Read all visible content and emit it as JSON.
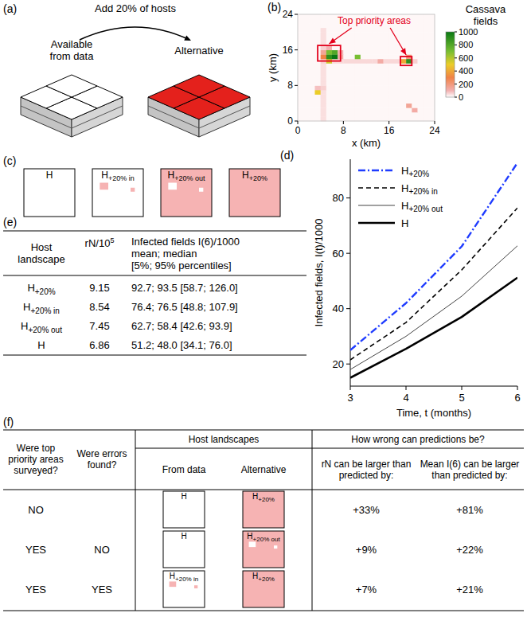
{
  "panel_labels": {
    "a": "(a)",
    "b": "(b)",
    "c": "(c)",
    "d": "(d)",
    "e": "(e)",
    "f": "(f)"
  },
  "panel_a": {
    "arrow_text": "Add 20% of hosts",
    "from_data": "Available from data",
    "alternative": "Alternative",
    "colors": [
      "#ffffff",
      "#e4211c"
    ]
  },
  "chart_data": [
    {
      "type": "heatmap",
      "title": "Cassava fields",
      "x_label": "x (km)",
      "y_label": "y (km)",
      "xlim": [
        0,
        24
      ],
      "ylim": [
        0,
        24
      ],
      "xticks": [
        0,
        8,
        16,
        24
      ],
      "yticks": [
        0,
        8,
        16,
        24
      ],
      "cells": [
        [
          10,
          10,
          10,
          10,
          40,
          10,
          10,
          10,
          10,
          10,
          10,
          10,
          10,
          10,
          10,
          10,
          10,
          10,
          10,
          10,
          10,
          10,
          10,
          10
        ],
        [
          10,
          10,
          10,
          10,
          40,
          10,
          10,
          10,
          10,
          10,
          10,
          10,
          10,
          10,
          10,
          10,
          10,
          10,
          10,
          10,
          10,
          10,
          10,
          10
        ],
        [
          10,
          10,
          10,
          10,
          40,
          10,
          10,
          10,
          10,
          10,
          10,
          10,
          10,
          10,
          10,
          10,
          10,
          10,
          10,
          10,
          120,
          10,
          10,
          10
        ],
        [
          10,
          10,
          10,
          10,
          40,
          10,
          10,
          10,
          10,
          10,
          10,
          10,
          10,
          10,
          10,
          10,
          10,
          10,
          10,
          150,
          10,
          10,
          10,
          10
        ],
        [
          10,
          10,
          10,
          10,
          40,
          10,
          10,
          10,
          10,
          10,
          10,
          10,
          10,
          10,
          10,
          10,
          10,
          10,
          10,
          10,
          10,
          10,
          10,
          10
        ],
        [
          10,
          10,
          10,
          10,
          40,
          10,
          10,
          10,
          10,
          10,
          10,
          10,
          10,
          10,
          10,
          10,
          10,
          10,
          10,
          10,
          10,
          10,
          10,
          10
        ],
        [
          10,
          10,
          10,
          500,
          40,
          10,
          10,
          10,
          10,
          10,
          10,
          10,
          10,
          10,
          10,
          10,
          10,
          10,
          10,
          10,
          10,
          10,
          10,
          10
        ],
        [
          10,
          10,
          10,
          80,
          60,
          10,
          10,
          10,
          10,
          10,
          10,
          10,
          10,
          10,
          10,
          10,
          10,
          10,
          10,
          10,
          10,
          10,
          10,
          10
        ],
        [
          10,
          10,
          10,
          10,
          40,
          10,
          10,
          10,
          10,
          10,
          10,
          10,
          10,
          10,
          10,
          10,
          10,
          10,
          10,
          10,
          10,
          10,
          10,
          10
        ],
        [
          10,
          10,
          10,
          10,
          40,
          10,
          10,
          10,
          10,
          10,
          10,
          10,
          10,
          10,
          10,
          10,
          10,
          10,
          10,
          10,
          10,
          10,
          10,
          10
        ],
        [
          10,
          10,
          10,
          10,
          40,
          10,
          10,
          10,
          10,
          10,
          10,
          10,
          10,
          10,
          10,
          10,
          10,
          10,
          10,
          10,
          10,
          10,
          10,
          10
        ],
        [
          10,
          10,
          10,
          10,
          40,
          10,
          10,
          10,
          10,
          10,
          10,
          10,
          10,
          10,
          10,
          10,
          10,
          10,
          10,
          10,
          10,
          10,
          10,
          10
        ],
        [
          10,
          10,
          10,
          10,
          40,
          10,
          10,
          10,
          10,
          10,
          10,
          10,
          10,
          10,
          10,
          10,
          10,
          10,
          10,
          10,
          10,
          10,
          10,
          10
        ],
        [
          10,
          10,
          10,
          10,
          60,
          550,
          50,
          50,
          50,
          50,
          50,
          50,
          50,
          50,
          120,
          50,
          50,
          50,
          400,
          900,
          60,
          10,
          10,
          10
        ],
        [
          10,
          10,
          10,
          10,
          300,
          900,
          1000,
          120,
          10,
          10,
          700,
          10,
          10,
          10,
          10,
          10,
          10,
          10,
          10,
          200,
          10,
          10,
          10,
          10
        ],
        [
          10,
          10,
          10,
          10,
          150,
          700,
          800,
          100,
          10,
          10,
          10,
          10,
          10,
          10,
          10,
          10,
          10,
          10,
          10,
          10,
          10,
          10,
          10,
          10
        ],
        [
          10,
          10,
          10,
          10,
          60,
          100,
          10,
          10,
          10,
          10,
          10,
          10,
          10,
          10,
          10,
          10,
          10,
          10,
          10,
          10,
          10,
          10,
          10,
          10
        ],
        [
          10,
          10,
          10,
          10,
          40,
          10,
          10,
          10,
          10,
          10,
          10,
          10,
          10,
          10,
          10,
          10,
          10,
          10,
          10,
          10,
          10,
          10,
          10,
          10
        ],
        [
          10,
          10,
          10,
          10,
          40,
          10,
          10,
          10,
          10,
          10,
          10,
          10,
          10,
          10,
          10,
          10,
          10,
          10,
          10,
          10,
          10,
          10,
          10,
          10
        ],
        [
          10,
          10,
          10,
          10,
          40,
          10,
          10,
          10,
          10,
          10,
          10,
          10,
          10,
          10,
          10,
          10,
          10,
          10,
          10,
          10,
          10,
          10,
          10,
          10
        ],
        [
          10,
          10,
          10,
          10,
          40,
          10,
          10,
          10,
          10,
          10,
          10,
          10,
          10,
          10,
          10,
          10,
          10,
          10,
          10,
          10,
          10,
          10,
          10,
          10
        ],
        [
          10,
          10,
          10,
          10,
          10,
          10,
          10,
          10,
          10,
          10,
          10,
          10,
          10,
          10,
          10,
          10,
          10,
          10,
          10,
          10,
          10,
          10,
          10,
          10
        ],
        [
          10,
          10,
          10,
          10,
          10,
          10,
          10,
          10,
          10,
          10,
          10,
          10,
          10,
          10,
          10,
          10,
          10,
          10,
          10,
          10,
          10,
          10,
          10,
          10
        ],
        [
          10,
          10,
          10,
          10,
          10,
          10,
          10,
          10,
          10,
          10,
          10,
          10,
          10,
          10,
          10,
          10,
          10,
          10,
          10,
          10,
          10,
          10,
          10,
          10
        ]
      ],
      "color_range": [
        0,
        1000
      ],
      "color_ticks": [
        0,
        200,
        400,
        600,
        800,
        1000
      ],
      "annotations": [
        {
          "text": "Top priority areas",
          "color": "#e3001b",
          "boxes": [
            [
              3.5,
              13.5,
              7.5,
              17
            ],
            [
              18,
              12.5,
              20,
              14.5
            ]
          ]
        }
      ]
    },
    {
      "type": "line",
      "x_label": "Time, t (months)",
      "y_label": "Infected fields, I(t)/1000",
      "x": [
        3,
        4,
        5,
        6
      ],
      "xlim": [
        3,
        6
      ],
      "xticks": [
        3,
        4,
        5,
        6
      ],
      "ylim": [
        12,
        94
      ],
      "yticks": [
        20,
        40,
        60,
        80
      ],
      "legend": "upper left",
      "series": [
        {
          "name": "H+20%",
          "color": "#1f3cff",
          "line_style": "dashdot",
          "values": [
            25,
            42,
            62.5,
            92.7
          ]
        },
        {
          "name": "H+20% in",
          "color": "#000000",
          "line_style": "dashed",
          "values": [
            21.5,
            35,
            54,
            76.4
          ]
        },
        {
          "name": "H+20% out",
          "color": "#444444",
          "line_style": "solid",
          "values": [
            18,
            30,
            44.5,
            62.7
          ]
        },
        {
          "name": "H",
          "color": "#000000",
          "line_style": "solid",
          "values": [
            15,
            25.5,
            37,
            51.2
          ]
        }
      ]
    }
  ],
  "panel_c": {
    "landscapes": [
      {
        "name": "H",
        "colors": [
          "#ffffff",
          "#ffffff"
        ]
      },
      {
        "name": "H+20% in",
        "colors": [
          "#ffffff",
          "#f6b3b3"
        ]
      },
      {
        "name": "H+20% out",
        "colors": [
          "#f6b3b3",
          "#ffffff"
        ]
      },
      {
        "name": "H+20%",
        "colors": [
          "#f6b3b3",
          "#f6b3b3"
        ]
      }
    ]
  },
  "table_e": {
    "header": {
      "landscape": "Host landscape",
      "rn": "rN/10",
      "rn_exp": "5",
      "infected": [
        "Infected fields I(6)/1000",
        "mean; median",
        "[5%; 95% percentiles]"
      ]
    },
    "rows": [
      {
        "landscape": "H+20%",
        "rn": "9.15",
        "infected": "92.7; 93.5 [58.7; 126.0]"
      },
      {
        "landscape": "H+20% in",
        "rn": "8.54",
        "infected": "76.4; 76.5 [48.8; 107.9]"
      },
      {
        "landscape": "H+20% out",
        "rn": "7.45",
        "infected": "62.7; 58.4 [42.6; 93.9]"
      },
      {
        "landscape": "H",
        "rn": "6.86",
        "infected": "51.2; 48.0 [34.1; 76.0]"
      }
    ]
  },
  "table_f": {
    "headers": {
      "surveyed": "Were top priority areas surveyed?",
      "errors": "Were errors found?",
      "landscapes": "Host landscapes",
      "from_data": "From data",
      "alternative": "Alternative",
      "wrong": "How wrong can predictions be?",
      "rn": "rN can be larger than predicted by:",
      "mean": "Mean I(6) can be larger than predicted by:"
    },
    "rows": [
      {
        "surveyed": "NO",
        "from_data": {
          "name": "H",
          "colors": [
            "#ffffff",
            "#ffffff"
          ]
        },
        "alternative": {
          "name": "H+20%",
          "colors": [
            "#f6b3b3",
            "#f6b3b3"
          ]
        },
        "rn": "+33%",
        "mean": "+81%"
      },
      {
        "surveyed": "YES",
        "errors": "NO",
        "from_data": {
          "name": "H",
          "colors": [
            "#ffffff",
            "#ffffff"
          ]
        },
        "alternative": {
          "name": "H+20% out",
          "colors": [
            "#f6b3b3",
            "#ffffff"
          ]
        },
        "rn": "+9%",
        "mean": "+22%"
      },
      {
        "surveyed": "YES",
        "errors": "YES",
        "from_data": {
          "name": "H+20% in",
          "colors": [
            "#ffffff",
            "#f6b3b3"
          ]
        },
        "alternative": {
          "name": "H+20%",
          "colors": [
            "#f6b3b3",
            "#f6b3b3"
          ]
        },
        "rn": "+7%",
        "mean": "+21%"
      }
    ]
  }
}
